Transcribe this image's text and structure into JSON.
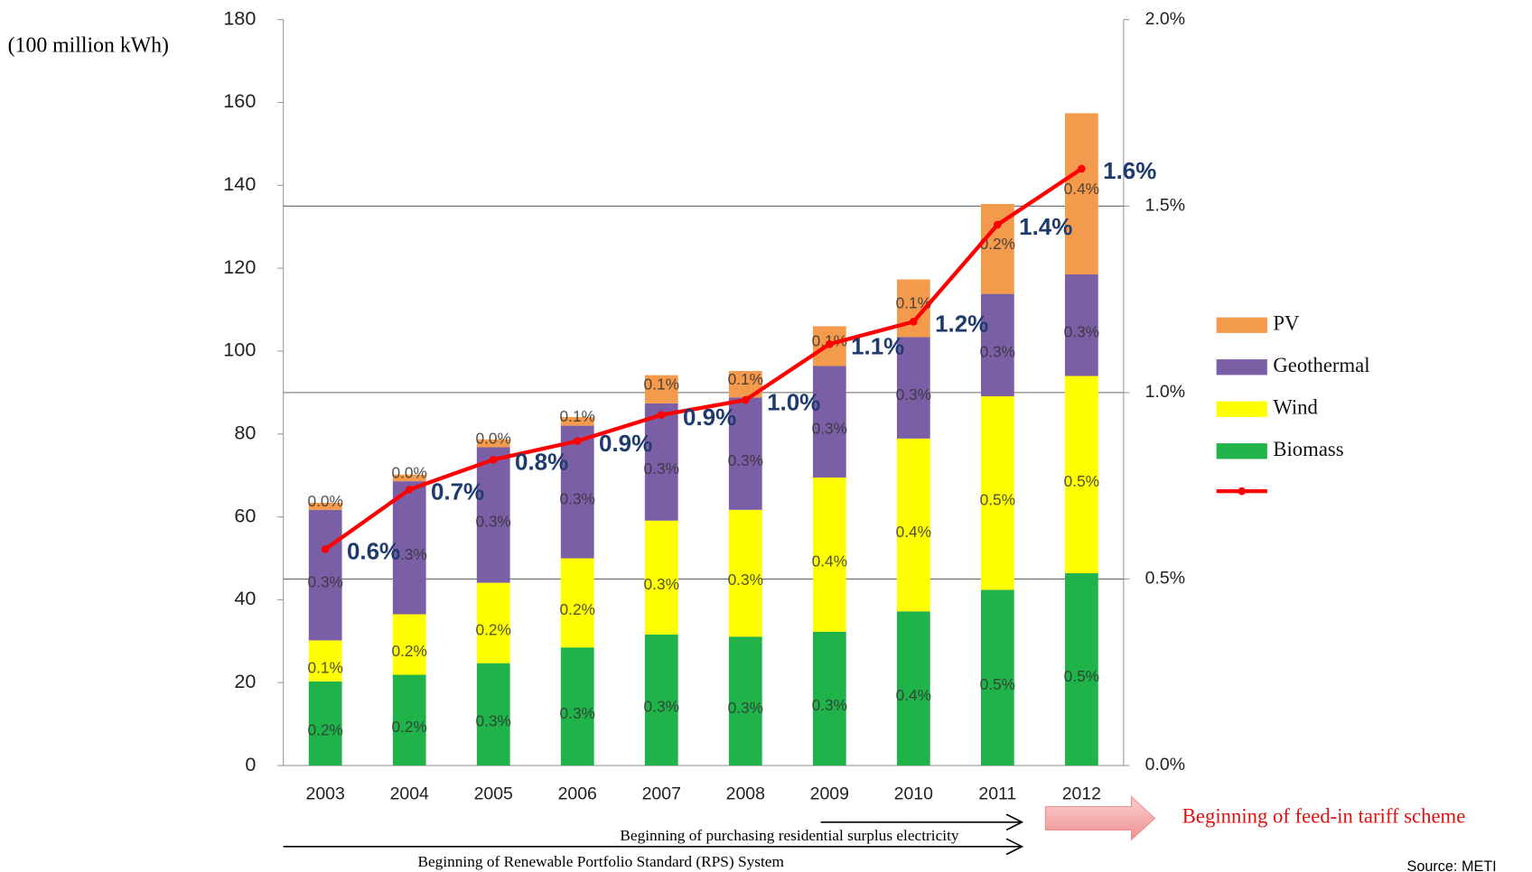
{
  "chart_data": {
    "type": "bar",
    "stacked": true,
    "ylabel": "(100 million kWh)",
    "categories": [
      "2003",
      "2004",
      "2005",
      "2006",
      "2007",
      "2008",
      "2009",
      "2010",
      "2011",
      "2012"
    ],
    "series": [
      {
        "name": "Biomass",
        "color": "#1fb34a",
        "values": [
          20.3,
          21.9,
          24.7,
          28.5,
          31.6,
          31.1,
          32.3,
          37.2,
          42.4,
          46.4
        ],
        "share_labels": [
          "0.2%",
          "0.2%",
          "0.3%",
          "0.3%",
          "0.3%",
          "0.3%",
          "0.3%",
          "0.4%",
          "0.5%",
          "0.5%"
        ]
      },
      {
        "name": "Wind",
        "color": "#ffff00",
        "values": [
          9.9,
          14.6,
          19.4,
          21.5,
          27.5,
          30.6,
          37.2,
          41.7,
          46.7,
          47.6
        ],
        "share_labels": [
          "0.1%",
          "0.2%",
          "0.2%",
          "0.2%",
          "0.3%",
          "0.3%",
          "0.4%",
          "0.4%",
          "0.5%",
          "0.5%"
        ]
      },
      {
        "name": "Geothermal",
        "color": "#7b5fa6",
        "values": [
          31.5,
          32.1,
          32.7,
          32.0,
          28.3,
          27.1,
          26.9,
          24.5,
          24.7,
          24.5
        ],
        "share_labels": [
          "0.3%",
          "0.3%",
          "0.3%",
          "0.3%",
          "0.3%",
          "0.3%",
          "0.3%",
          "0.3%",
          "0.3%",
          "0.3%"
        ]
      },
      {
        "name": "PV",
        "color": "#f39a4c",
        "values": [
          1.7,
          1.6,
          1.9,
          2.1,
          6.8,
          6.4,
          9.6,
          13.9,
          21.7,
          38.9
        ],
        "share_labels": [
          "0.0%",
          "0.0%",
          "0.0%",
          "0.1%",
          "0.1%",
          "0.1%",
          "0.1%",
          "0.1%",
          "0.2%",
          "0.4%"
        ]
      },
      {
        "type": "line",
        "axis": "y2",
        "color": "#ff0000",
        "values": [
          0.58,
          0.74,
          0.82,
          0.87,
          0.94,
          0.98,
          1.13,
          1.19,
          1.45,
          1.6
        ],
        "value_labels": [
          "0.6%",
          "0.7%",
          "0.8%",
          "0.9%",
          "0.9%",
          "1.0%",
          "1.1%",
          "1.2%",
          "1.4%",
          "1.6%"
        ]
      }
    ],
    "ylim": [
      0,
      180
    ],
    "yticks": [
      0,
      20,
      40,
      60,
      80,
      100,
      120,
      140,
      160,
      180
    ],
    "y2lim": [
      0,
      2.0
    ],
    "y2ticks": [
      {
        "value": 0,
        "label": "0.0%"
      },
      {
        "value": 0.5,
        "label": "0.5%"
      },
      {
        "value": 1.0,
        "label": "1.0%"
      },
      {
        "value": 1.5,
        "label": "1.5%"
      },
      {
        "value": 2.0,
        "label": "2.0%"
      }
    ],
    "y2grid": true,
    "legend": "right",
    "annotations": [
      "Beginning of purchasing residential surplus electricity",
      "Beginning of Renewable Portfolio Standard (RPS) System",
      "Beginning of  feed-in tariff scheme"
    ],
    "source": "Source: METI"
  }
}
